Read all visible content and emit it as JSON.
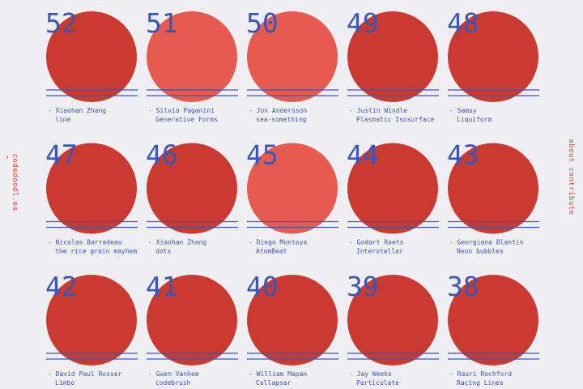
{
  "site": {
    "logo": "codedoodl.es",
    "nav": [
      "about",
      "contribute"
    ]
  },
  "doodles": [
    {
      "number": "52",
      "author": "- Xiaohan Zhang",
      "title": "line"
    },
    {
      "number": "51",
      "author": "- Silvio Paganini",
      "title": "Generative Forms"
    },
    {
      "number": "50",
      "author": "- Jon Andersson",
      "title": "sea-something"
    },
    {
      "number": "49",
      "author": "- Justin Windle",
      "title": "Plasmatic Isosurface"
    },
    {
      "number": "48",
      "author": "- Samsy",
      "title": "Liquiform"
    },
    {
      "number": "47",
      "author": "- Nicolas Barradeau",
      "title": "the rice grain mayhem"
    },
    {
      "number": "46",
      "author": "- Xiaohan Zhang",
      "title": "dots"
    },
    {
      "number": "45",
      "author": "- Diego Montoya",
      "title": "AtomBeat"
    },
    {
      "number": "44",
      "author": "- Godart Raets",
      "title": "Interstellar"
    },
    {
      "number": "43",
      "author": "- Georgiana Blantin",
      "title": "Neon bubbles"
    },
    {
      "number": "42",
      "author": "- David Paul Rosser",
      "title": "Limbo"
    },
    {
      "number": "41",
      "author": "- Gwen Vanhee",
      "title": "codebrush"
    },
    {
      "number": "40",
      "author": "- William Mapan",
      "title": "Collapsar"
    },
    {
      "number": "39",
      "author": "- Jay Weeks",
      "title": "Particulate"
    },
    {
      "number": "38",
      "author": "- Rauri Rochford",
      "title": "Racing Lines"
    }
  ]
}
